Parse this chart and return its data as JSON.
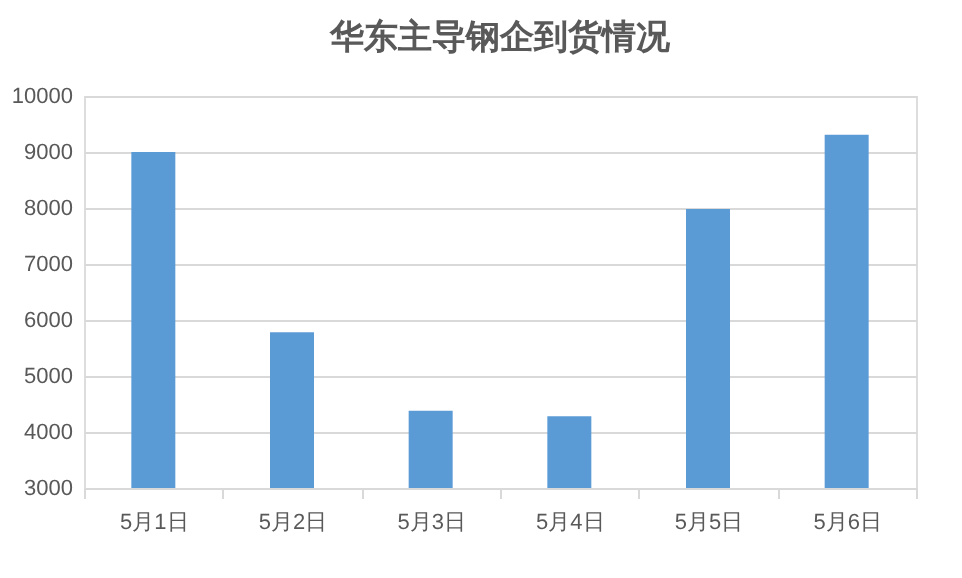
{
  "chart_data": {
    "type": "bar",
    "title": "华东主导钢企到货情况",
    "categories": [
      "5月1日",
      "5月2日",
      "5月3日",
      "5月4日",
      "5月5日",
      "5月6日"
    ],
    "values": [
      9000,
      5780,
      4380,
      4280,
      7980,
      9310
    ],
    "color": "#5b9bd5",
    "ylim": [
      3000,
      10000
    ],
    "yticks": [
      3000,
      4000,
      5000,
      6000,
      7000,
      8000,
      9000,
      10000
    ],
    "grid": "y"
  }
}
